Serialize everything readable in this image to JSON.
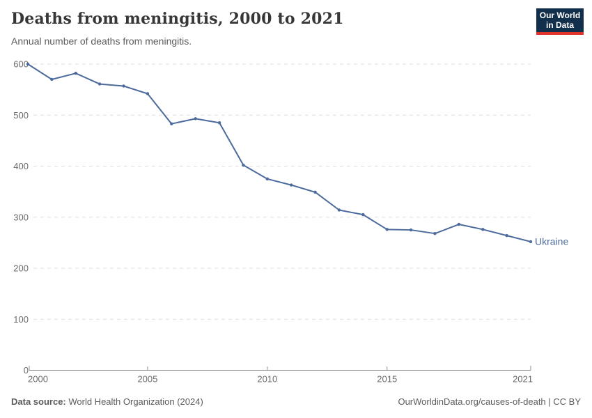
{
  "header": {
    "title": "Deaths from meningitis, 2000 to 2021",
    "subtitle": "Annual number of deaths from meningitis.",
    "logo_line1": "Our World",
    "logo_line2": "in Data"
  },
  "chart_data": {
    "type": "line",
    "title": "Deaths from meningitis, 2000 to 2021",
    "xlabel": "",
    "ylabel": "",
    "x": [
      2000,
      2001,
      2002,
      2003,
      2004,
      2005,
      2006,
      2007,
      2008,
      2009,
      2010,
      2011,
      2012,
      2013,
      2014,
      2015,
      2016,
      2017,
      2018,
      2019,
      2020,
      2021
    ],
    "series": [
      {
        "name": "Ukraine",
        "color": "#4c6a9c",
        "values": [
          600,
          570,
          582,
          561,
          557,
          542,
          483,
          493,
          485,
          402,
          375,
          363,
          349,
          314,
          305,
          276,
          275,
          268,
          286,
          276,
          264,
          252
        ]
      }
    ],
    "ylim": [
      0,
      600
    ],
    "yticks": [
      0,
      100,
      200,
      300,
      400,
      500,
      600
    ],
    "xticks": [
      2000,
      2005,
      2010,
      2015,
      2021
    ],
    "grid": true,
    "grid_style": "dashed",
    "legend": "end-of-line-label",
    "colors": {
      "gridline": "#dedede",
      "axis": "#8f8f8f",
      "tick_text": "#6b6b6b"
    }
  },
  "footer": {
    "source_label": "Data source:",
    "source_value": " World Health Organization (2024)",
    "link": "OurWorldinData.org/causes-of-death | CC BY"
  }
}
